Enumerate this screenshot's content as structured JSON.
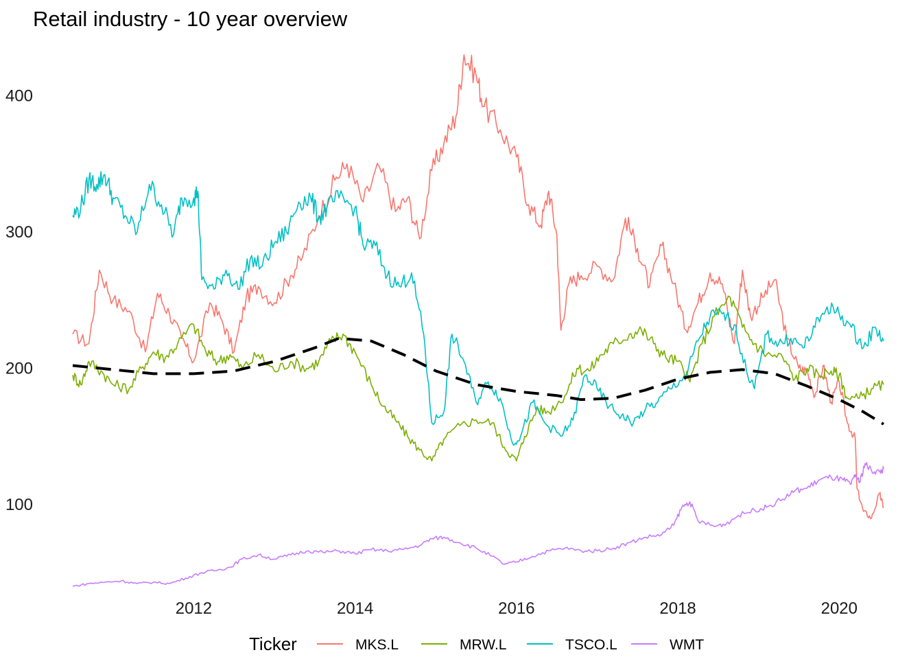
{
  "chart_data": {
    "type": "line",
    "title": "Retail industry - 10 year overview",
    "xlabel": "",
    "ylabel": "",
    "xlim": [
      2010.5,
      2020.55
    ],
    "ylim": [
      33,
      440
    ],
    "x_ticks": [
      2012,
      2014,
      2016,
      2018,
      2020
    ],
    "y_ticks": [
      100,
      200,
      300,
      400
    ],
    "grid": false,
    "legend": {
      "title": "Ticker",
      "placement": "bottom"
    },
    "series": [
      {
        "name": "MKS.L",
        "color": "#F8766D",
        "points": [
          [
            2010.5,
            225
          ],
          [
            2010.7,
            218
          ],
          [
            2010.83,
            272
          ],
          [
            2011.0,
            250
          ],
          [
            2011.2,
            242
          ],
          [
            2011.4,
            212
          ],
          [
            2011.55,
            255
          ],
          [
            2011.7,
            240
          ],
          [
            2011.85,
            222
          ],
          [
            2012.0,
            205
          ],
          [
            2012.2,
            248
          ],
          [
            2012.35,
            235
          ],
          [
            2012.5,
            212
          ],
          [
            2012.65,
            252
          ],
          [
            2012.8,
            260
          ],
          [
            2013.0,
            248
          ],
          [
            2013.2,
            268
          ],
          [
            2013.35,
            282
          ],
          [
            2013.55,
            312
          ],
          [
            2013.75,
            338
          ],
          [
            2013.9,
            350
          ],
          [
            2014.1,
            322
          ],
          [
            2014.3,
            348
          ],
          [
            2014.5,
            315
          ],
          [
            2014.65,
            325
          ],
          [
            2014.8,
            295
          ],
          [
            2014.95,
            345
          ],
          [
            2015.1,
            365
          ],
          [
            2015.25,
            385
          ],
          [
            2015.35,
            430
          ],
          [
            2015.5,
            415
          ],
          [
            2015.6,
            392
          ],
          [
            2015.8,
            375
          ],
          [
            2016.0,
            355
          ],
          [
            2016.15,
            320
          ],
          [
            2016.3,
            305
          ],
          [
            2016.4,
            330
          ],
          [
            2016.5,
            298
          ],
          [
            2016.55,
            228
          ],
          [
            2016.65,
            262
          ],
          [
            2016.8,
            268
          ],
          [
            2017.0,
            275
          ],
          [
            2017.2,
            265
          ],
          [
            2017.35,
            310
          ],
          [
            2017.5,
            288
          ],
          [
            2017.65,
            260
          ],
          [
            2017.8,
            290
          ],
          [
            2017.95,
            262
          ],
          [
            2018.1,
            228
          ],
          [
            2018.25,
            248
          ],
          [
            2018.4,
            270
          ],
          [
            2018.55,
            262
          ],
          [
            2018.7,
            218
          ],
          [
            2018.8,
            272
          ],
          [
            2018.9,
            238
          ],
          [
            2019.05,
            252
          ],
          [
            2019.2,
            265
          ],
          [
            2019.35,
            222
          ],
          [
            2019.5,
            200
          ],
          [
            2019.6,
            198
          ],
          [
            2019.7,
            180
          ],
          [
            2019.8,
            202
          ],
          [
            2019.9,
            175
          ],
          [
            2020.0,
            190
          ],
          [
            2020.1,
            160
          ],
          [
            2020.2,
            148
          ],
          [
            2020.22,
            112
          ],
          [
            2020.3,
            95
          ],
          [
            2020.4,
            90
          ],
          [
            2020.5,
            108
          ],
          [
            2020.55,
            98
          ]
        ]
      },
      {
        "name": "MRW.L",
        "color": "#7CAE00",
        "points": [
          [
            2010.5,
            195
          ],
          [
            2010.6,
            188
          ],
          [
            2010.7,
            205
          ],
          [
            2010.85,
            198
          ],
          [
            2011.0,
            188
          ],
          [
            2011.2,
            185
          ],
          [
            2011.35,
            200
          ],
          [
            2011.5,
            212
          ],
          [
            2011.65,
            208
          ],
          [
            2011.8,
            218
          ],
          [
            2012.0,
            232
          ],
          [
            2012.15,
            212
          ],
          [
            2012.3,
            205
          ],
          [
            2012.45,
            210
          ],
          [
            2012.6,
            200
          ],
          [
            2012.8,
            210
          ],
          [
            2013.0,
            198
          ],
          [
            2013.2,
            205
          ],
          [
            2013.4,
            200
          ],
          [
            2013.55,
            205
          ],
          [
            2013.7,
            220
          ],
          [
            2013.85,
            225
          ],
          [
            2014.0,
            212
          ],
          [
            2014.2,
            188
          ],
          [
            2014.35,
            172
          ],
          [
            2014.5,
            162
          ],
          [
            2014.65,
            150
          ],
          [
            2014.8,
            140
          ],
          [
            2014.95,
            132
          ],
          [
            2015.1,
            148
          ],
          [
            2015.3,
            158
          ],
          [
            2015.5,
            162
          ],
          [
            2015.7,
            160
          ],
          [
            2015.85,
            142
          ],
          [
            2016.0,
            132
          ],
          [
            2016.1,
            150
          ],
          [
            2016.25,
            170
          ],
          [
            2016.4,
            168
          ],
          [
            2016.6,
            180
          ],
          [
            2016.75,
            200
          ],
          [
            2016.9,
            198
          ],
          [
            2017.05,
            210
          ],
          [
            2017.2,
            218
          ],
          [
            2017.4,
            225
          ],
          [
            2017.55,
            228
          ],
          [
            2017.7,
            218
          ],
          [
            2017.85,
            208
          ],
          [
            2018.0,
            205
          ],
          [
            2018.15,
            190
          ],
          [
            2018.3,
            218
          ],
          [
            2018.45,
            238
          ],
          [
            2018.65,
            252
          ],
          [
            2018.8,
            230
          ],
          [
            2018.95,
            218
          ],
          [
            2019.1,
            210
          ],
          [
            2019.3,
            208
          ],
          [
            2019.45,
            192
          ],
          [
            2019.6,
            200
          ],
          [
            2019.75,
            195
          ],
          [
            2019.9,
            198
          ],
          [
            2020.0,
            195
          ],
          [
            2020.1,
            178
          ],
          [
            2020.25,
            178
          ],
          [
            2020.4,
            185
          ],
          [
            2020.55,
            188
          ]
        ]
      },
      {
        "name": "TSCO.L",
        "color": "#00BFC4",
        "points": [
          [
            2010.5,
            312
          ],
          [
            2010.6,
            318
          ],
          [
            2010.7,
            338
          ],
          [
            2010.8,
            335
          ],
          [
            2010.9,
            342
          ],
          [
            2011.0,
            325
          ],
          [
            2011.15,
            312
          ],
          [
            2011.3,
            300
          ],
          [
            2011.45,
            335
          ],
          [
            2011.6,
            320
          ],
          [
            2011.75,
            298
          ],
          [
            2011.85,
            325
          ],
          [
            2012.0,
            325
          ],
          [
            2012.05,
            330
          ],
          [
            2012.1,
            265
          ],
          [
            2012.25,
            258
          ],
          [
            2012.4,
            272
          ],
          [
            2012.55,
            258
          ],
          [
            2012.7,
            280
          ],
          [
            2012.85,
            275
          ],
          [
            2013.0,
            292
          ],
          [
            2013.15,
            300
          ],
          [
            2013.3,
            322
          ],
          [
            2013.45,
            325
          ],
          [
            2013.55,
            310
          ],
          [
            2013.65,
            318
          ],
          [
            2013.8,
            325
          ],
          [
            2014.0,
            318
          ],
          [
            2014.1,
            290
          ],
          [
            2014.25,
            290
          ],
          [
            2014.4,
            268
          ],
          [
            2014.55,
            260
          ],
          [
            2014.7,
            270
          ],
          [
            2014.85,
            225
          ],
          [
            2014.95,
            160
          ],
          [
            2015.1,
            168
          ],
          [
            2015.2,
            225
          ],
          [
            2015.35,
            205
          ],
          [
            2015.5,
            175
          ],
          [
            2015.65,
            190
          ],
          [
            2015.8,
            178
          ],
          [
            2015.95,
            145
          ],
          [
            2016.05,
            150
          ],
          [
            2016.2,
            175
          ],
          [
            2016.35,
            160
          ],
          [
            2016.55,
            150
          ],
          [
            2016.7,
            162
          ],
          [
            2016.85,
            195
          ],
          [
            2017.0,
            185
          ],
          [
            2017.15,
            172
          ],
          [
            2017.3,
            165
          ],
          [
            2017.45,
            160
          ],
          [
            2017.6,
            170
          ],
          [
            2017.75,
            175
          ],
          [
            2017.9,
            185
          ],
          [
            2018.1,
            195
          ],
          [
            2018.25,
            220
          ],
          [
            2018.4,
            238
          ],
          [
            2018.55,
            240
          ],
          [
            2018.7,
            232
          ],
          [
            2018.85,
            198
          ],
          [
            2018.95,
            185
          ],
          [
            2019.1,
            225
          ],
          [
            2019.25,
            218
          ],
          [
            2019.4,
            222
          ],
          [
            2019.55,
            215
          ],
          [
            2019.7,
            230
          ],
          [
            2019.85,
            245
          ],
          [
            2020.0,
            240
          ],
          [
            2020.15,
            230
          ],
          [
            2020.3,
            215
          ],
          [
            2020.45,
            230
          ],
          [
            2020.55,
            220
          ]
        ]
      },
      {
        "name": "WMT",
        "color": "#C77CFF",
        "points": [
          [
            2010.5,
            40
          ],
          [
            2010.7,
            42
          ],
          [
            2010.9,
            43
          ],
          [
            2011.1,
            44
          ],
          [
            2011.3,
            42
          ],
          [
            2011.5,
            43
          ],
          [
            2011.7,
            42
          ],
          [
            2011.9,
            46
          ],
          [
            2012.1,
            50
          ],
          [
            2012.3,
            52
          ],
          [
            2012.45,
            54
          ],
          [
            2012.6,
            60
          ],
          [
            2012.8,
            63
          ],
          [
            2013.0,
            60
          ],
          [
            2013.2,
            63
          ],
          [
            2013.4,
            66
          ],
          [
            2013.6,
            65
          ],
          [
            2013.8,
            66
          ],
          [
            2014.0,
            64
          ],
          [
            2014.2,
            67
          ],
          [
            2014.4,
            66
          ],
          [
            2014.6,
            67
          ],
          [
            2014.8,
            70
          ],
          [
            2014.95,
            75
          ],
          [
            2015.1,
            76
          ],
          [
            2015.3,
            72
          ],
          [
            2015.5,
            68
          ],
          [
            2015.7,
            62
          ],
          [
            2015.85,
            56
          ],
          [
            2016.0,
            58
          ],
          [
            2016.2,
            62
          ],
          [
            2016.4,
            66
          ],
          [
            2016.6,
            68
          ],
          [
            2016.8,
            66
          ],
          [
            2017.0,
            66
          ],
          [
            2017.2,
            68
          ],
          [
            2017.4,
            72
          ],
          [
            2017.6,
            76
          ],
          [
            2017.8,
            78
          ],
          [
            2017.95,
            85
          ],
          [
            2018.05,
            98
          ],
          [
            2018.15,
            102
          ],
          [
            2018.25,
            88
          ],
          [
            2018.45,
            84
          ],
          [
            2018.6,
            86
          ],
          [
            2018.75,
            92
          ],
          [
            2018.95,
            96
          ],
          [
            2019.1,
            98
          ],
          [
            2019.3,
            104
          ],
          [
            2019.45,
            110
          ],
          [
            2019.6,
            112
          ],
          [
            2019.75,
            118
          ],
          [
            2019.9,
            120
          ],
          [
            2020.05,
            118
          ],
          [
            2020.15,
            115
          ],
          [
            2020.2,
            122
          ],
          [
            2020.25,
            116
          ],
          [
            2020.32,
            130
          ],
          [
            2020.4,
            125
          ],
          [
            2020.5,
            124
          ],
          [
            2020.55,
            126
          ]
        ]
      }
    ],
    "trend": {
      "style": "dashed",
      "color": "#000000",
      "points": [
        [
          2010.5,
          202
        ],
        [
          2011.0,
          199
        ],
        [
          2011.5,
          196
        ],
        [
          2012.0,
          196
        ],
        [
          2012.5,
          198
        ],
        [
          2013.0,
          205
        ],
        [
          2013.5,
          215
        ],
        [
          2013.8,
          222
        ],
        [
          2014.2,
          220
        ],
        [
          2014.6,
          210
        ],
        [
          2015.0,
          198
        ],
        [
          2015.5,
          188
        ],
        [
          2016.0,
          183
        ],
        [
          2016.5,
          180
        ],
        [
          2016.8,
          177
        ],
        [
          2017.2,
          178
        ],
        [
          2017.6,
          184
        ],
        [
          2018.0,
          192
        ],
        [
          2018.4,
          197
        ],
        [
          2018.8,
          199
        ],
        [
          2019.2,
          196
        ],
        [
          2019.6,
          187
        ],
        [
          2020.0,
          177
        ],
        [
          2020.3,
          168
        ],
        [
          2020.55,
          159
        ]
      ]
    }
  }
}
